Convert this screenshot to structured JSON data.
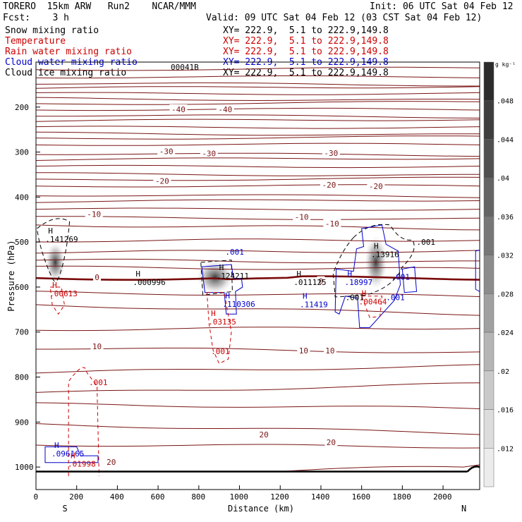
{
  "header": {
    "line1_left": "TORERO  15km ARW   Run2    NCAR/MMM",
    "line1_right": "Init: 06 UTC Sat 04 Feb 12",
    "line2_left": "Fcst:    3 h",
    "line2_right": "Valid: 09 UTC Sat 04 Feb 12 (03 CST Sat 04 Feb 12)"
  },
  "fields": [
    {
      "name": "Snow mixing ratio",
      "xy": "XY= 222.9,  5.1 to 222.9,149.8",
      "name_color": "#000000",
      "xy_color": "#000000"
    },
    {
      "name": "Temperature",
      "xy": "XY= 222.9,  5.1 to 222.9,149.8",
      "name_color": "#cc0000",
      "xy_color": "#cc0000"
    },
    {
      "name": "Rain water mixing ratio",
      "xy": "XY= 222.9,  5.1 to 222.9,149.8",
      "name_color": "#cc0000",
      "xy_color": "#cc0000"
    },
    {
      "name": "Cloud water mixing ratio",
      "xy": "XY= 222.9,  5.1 to 222.9,149.8",
      "name_color": "#0000cc",
      "xy_color": "#0000cc"
    },
    {
      "name": "Cloud ice mixing ratio",
      "xy": "XY= 222.9,  5.1 to 222.9,149.8",
      "name_color": "#000000",
      "xy_color": "#000000"
    }
  ],
  "overlap_label": "00041B",
  "chart_data": {
    "type": "cross-section",
    "xlabel": "Distance (km)",
    "ylabel": "Pressure (hPa)",
    "xlim": [
      0,
      2180
    ],
    "ylim": [
      1050,
      100
    ],
    "x_ticks": [
      0,
      200,
      400,
      600,
      800,
      1000,
      1200,
      1400,
      1600,
      1800,
      2000
    ],
    "y_ticks": [
      200,
      300,
      400,
      500,
      600,
      700,
      800,
      900,
      1000
    ],
    "endpoints": {
      "left": "S",
      "right": "N"
    },
    "colorbar": {
      "unit": "g kg⁻¹",
      "ticks": [
        ".048",
        ".044",
        ".04",
        ".036",
        ".032",
        ".028",
        ".024",
        ".02",
        ".016",
        ".012"
      ]
    },
    "temperature_labels": [
      {
        "text": "-40",
        "x": 700,
        "p": 205
      },
      {
        "text": "-40",
        "x": 930,
        "p": 205
      },
      {
        "text": "-30",
        "x": 640,
        "p": 298
      },
      {
        "text": "-30",
        "x": 850,
        "p": 303
      },
      {
        "text": "-30",
        "x": 1450,
        "p": 302
      },
      {
        "text": "-20",
        "x": 620,
        "p": 364
      },
      {
        "text": "-20",
        "x": 1440,
        "p": 373
      },
      {
        "text": "-20",
        "x": 1670,
        "p": 376
      },
      {
        "text": "-10",
        "x": 285,
        "p": 438
      },
      {
        "text": "-10",
        "x": 1305,
        "p": 444
      },
      {
        "text": "-10",
        "x": 1455,
        "p": 459
      },
      {
        "text": "0",
        "x": 300,
        "p": 578
      },
      {
        "text": "0",
        "x": 1400,
        "p": 587
      },
      {
        "text": "10",
        "x": 300,
        "p": 732
      },
      {
        "text": "10",
        "x": 1315,
        "p": 741
      },
      {
        "text": "10",
        "x": 1445,
        "p": 741
      },
      {
        "text": "20",
        "x": 370,
        "p": 989
      },
      {
        "text": "20",
        "x": 1120,
        "p": 928
      },
      {
        "text": "20",
        "x": 1450,
        "p": 945
      }
    ],
    "maxima": [
      {
        "label": "H",
        "value": ".141269",
        "x": 60,
        "p": 497,
        "color": "#000000"
      },
      {
        "label": "H",
        "value": ".00613",
        "x": 80,
        "p": 617,
        "color": "#cc0000"
      },
      {
        "label": "H",
        "value": ".000996",
        "x": 490,
        "p": 592,
        "color": "#000000"
      },
      {
        "label": "H",
        "value": ".124211",
        "x": 900,
        "p": 578,
        "color": "#000000"
      },
      {
        "label": "H",
        "value": ".110306",
        "x": 930,
        "p": 641,
        "color": "#0000cc"
      },
      {
        "label": "H",
        "value": ".03135",
        "x": 860,
        "p": 680,
        "color": "#cc0000"
      },
      {
        "label": "H",
        "value": ".011125",
        "x": 1280,
        "p": 592,
        "color": "#000000"
      },
      {
        "label": "H",
        "value": ".11419",
        "x": 1310,
        "p": 642,
        "color": "#0000cc"
      },
      {
        "label": "H",
        "value": ".13916",
        "x": 1660,
        "p": 530,
        "color": "#000000"
      },
      {
        "label": "H",
        "value": ".18997",
        "x": 1530,
        "p": 592,
        "color": "#0000cc"
      },
      {
        "label": "H",
        "value": ".00464",
        "x": 1600,
        "p": 635,
        "color": "#cc0000"
      },
      {
        "label": "H",
        "value": ".096165",
        "x": 90,
        "p": 973,
        "color": "#0000cc"
      },
      {
        "label": "H",
        "value": ".01998",
        "x": 170,
        "p": 996,
        "color": "#cc0000"
      }
    ],
    "contour_labels": [
      {
        "text": ".001",
        "x": 930,
        "p": 522,
        "color": "#0000cc"
      },
      {
        "text": ".001",
        "x": 1870,
        "p": 500,
        "color": "#000000"
      },
      {
        "text": ".001",
        "x": 1745,
        "p": 577,
        "color": "#0000cc"
      },
      {
        "text": ".001",
        "x": 1520,
        "p": 623,
        "color": "#000000"
      },
      {
        "text": ".001",
        "x": 1720,
        "p": 623,
        "color": "#0000cc"
      },
      {
        "text": ".001",
        "x": 860,
        "p": 743,
        "color": "#cc0000"
      },
      {
        "text": ".001",
        "x": 260,
        "p": 812,
        "color": "#cc0000"
      }
    ]
  }
}
